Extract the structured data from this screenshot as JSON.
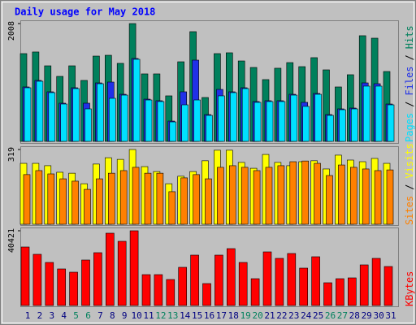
{
  "title": "Daily usage for May 2018",
  "legend_separator": "/",
  "chart_data": [
    {
      "type": "bar",
      "ylim": [
        0,
        2022
      ],
      "yticks": [
        2008
      ],
      "series": [
        {
          "name": "Hits",
          "color": "#00805c",
          "values": [
            1496,
            1524,
            1288,
            1108,
            1288,
            1039,
            1454,
            1468,
            1330,
            2008,
            1150,
            1150,
            776,
            1357,
            1870,
            748,
            1496,
            1510,
            1371,
            1260,
            1053,
            1247,
            1343,
            1274,
            1427,
            1219,
            928,
            1136,
            1801,
            1759,
            1191
          ]
        },
        {
          "name": "Files",
          "color": "#2030e8",
          "values": [
            928,
            1039,
            845,
            651,
            914,
            651,
            997,
            1011,
            803,
            1413,
            720,
            693,
            346,
            845,
            1385,
            457,
            886,
            845,
            914,
            679,
            693,
            693,
            803,
            665,
            817,
            457,
            554,
            568,
            997,
            983,
            637
          ]
        },
        {
          "name": "Pages",
          "color": "#00e0ff",
          "values": [
            914,
            1025,
            831,
            637,
            900,
            554,
            983,
            734,
            789,
            1399,
            706,
            679,
            332,
            623,
            706,
            443,
            776,
            831,
            900,
            665,
            679,
            679,
            789,
            596,
            803,
            443,
            540,
            554,
            942,
            942,
            623
          ]
        }
      ]
    },
    {
      "type": "bar",
      "ylim": [
        0,
        326
      ],
      "yticks": [
        319
      ],
      "series": [
        {
          "name": "Visits",
          "color": "#ffff00",
          "values": [
            260,
            260,
            250,
            222,
            218,
            173,
            257,
            284,
            277,
            319,
            246,
            225,
            173,
            205,
            225,
            271,
            316,
            316,
            264,
            239,
            298,
            264,
            250,
            267,
            271,
            236,
            295,
            274,
            267,
            281,
            260
          ]
        },
        {
          "name": "Sites",
          "color": "#ff8000",
          "values": [
            212,
            229,
            215,
            194,
            184,
            149,
            194,
            218,
            229,
            243,
            218,
            218,
            139,
            198,
            212,
            194,
            243,
            250,
            243,
            229,
            243,
            250,
            267,
            270,
            260,
            208,
            253,
            243,
            236,
            229,
            232
          ]
        }
      ]
    },
    {
      "type": "bar",
      "ylim": [
        0,
        41300
      ],
      "yticks": [
        40421
      ],
      "categories": [
        "1",
        "2",
        "3",
        "4",
        "5",
        "6",
        "7",
        "8",
        "9",
        "10",
        "11",
        "12",
        "13",
        "14",
        "15",
        "16",
        "17",
        "18",
        "19",
        "20",
        "21",
        "22",
        "23",
        "24",
        "25",
        "26",
        "27",
        "28",
        "29",
        "30",
        "31"
      ],
      "category_colors": [
        "#000080",
        "#000080",
        "#000080",
        "#000080",
        "#00805c",
        "#00805c",
        "#000080",
        "#000080",
        "#000080",
        "#000080",
        "#000080",
        "#00805c",
        "#00805c",
        "#000080",
        "#000080",
        "#000080",
        "#000080",
        "#000080",
        "#00805c",
        "#00805c",
        "#000080",
        "#000080",
        "#000080",
        "#000080",
        "#000080",
        "#00805c",
        "#00805c",
        "#000080",
        "#000080",
        "#000080",
        "#000080"
      ],
      "series": [
        {
          "name": "KBytes",
          "color": "#ff0000",
          "values": [
            31637,
            27682,
            23288,
            19773,
            18015,
            24606,
            28561,
            39107,
            34712,
            40421,
            16697,
            16697,
            14061,
            20652,
            27243,
            11864,
            27243,
            30758,
            23288,
            14500,
            29000,
            25485,
            28122,
            20212,
            26364,
            12303,
            14500,
            14940,
            21970,
            25485,
            21091
          ]
        }
      ]
    }
  ]
}
